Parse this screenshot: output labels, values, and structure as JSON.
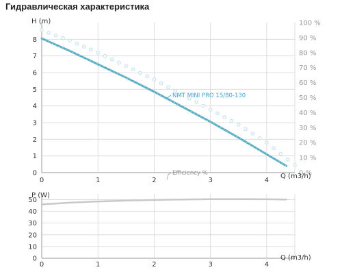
{
  "page": {
    "title": "Гидравлическая характеристика"
  },
  "colors": {
    "head_curve": "#5aaec4",
    "efficiency_curve": "#c5e2ec",
    "power_curve": "#c8c8c8",
    "grid": "#d6d6d6",
    "axis_text": "#333333",
    "right_axis_text": "#999999",
    "model_label": "#3fa6d0",
    "efficiency_label": "#999999"
  },
  "chart_data": [
    {
      "id": "hydraulic",
      "type": "line",
      "title": "Гидравлическая характеристика",
      "xlabel": "Q (m3/h)",
      "ylabel": "H (m)",
      "y2label": "",
      "xlim": [
        0,
        4.5
      ],
      "ylim": [
        0,
        9
      ],
      "y2lim": [
        0,
        100
      ],
      "xticks": [
        "0",
        "1",
        "2",
        "3",
        "4"
      ],
      "yticks": [
        "0",
        "1",
        "2",
        "3",
        "4",
        "5",
        "6",
        "7",
        "8"
      ],
      "y2ticks": [
        "0 %",
        "10 %",
        "20 %",
        "30 %",
        "40 %",
        "50 %",
        "60 %",
        "70 %",
        "80 %",
        "90 %",
        "100 %"
      ],
      "grid": true,
      "series": [
        {
          "name": "NMT MINI PRO 15/80-130",
          "axis": "left",
          "style": "solid",
          "x": [
            0,
            0.5,
            1,
            1.5,
            2,
            2.5,
            3,
            3.5,
            4,
            4.35
          ],
          "y": [
            8.05,
            7.3,
            6.5,
            5.7,
            4.85,
            3.95,
            3.05,
            2.1,
            1.1,
            0.4
          ]
        },
        {
          "name": "Efficiency %",
          "axis": "right",
          "style": "dotted",
          "x": [
            0,
            0.5,
            1,
            1.5,
            2,
            2.5,
            3,
            3.5,
            4,
            4.5
          ],
          "y": [
            95,
            88,
            80,
            71,
            62,
            52,
            42,
            32,
            20,
            5
          ]
        }
      ]
    },
    {
      "id": "power",
      "type": "line",
      "title": "",
      "xlabel": "Q (m3/h)",
      "ylabel": "P (W)",
      "xlim": [
        0,
        4.5
      ],
      "ylim": [
        0,
        55
      ],
      "xticks": [
        "0",
        "1",
        "2",
        "3",
        "4"
      ],
      "yticks": [
        "0",
        "10",
        "20",
        "30",
        "40",
        "50"
      ],
      "grid": true,
      "series": [
        {
          "name": "",
          "axis": "left",
          "style": "solid",
          "x": [
            0,
            0.5,
            1,
            1.5,
            2,
            2.5,
            3,
            3.5,
            4,
            4.35
          ],
          "y": [
            46,
            47.5,
            48.5,
            49.2,
            49.8,
            50.2,
            50.5,
            50.5,
            50.4,
            50.2
          ]
        }
      ]
    }
  ]
}
